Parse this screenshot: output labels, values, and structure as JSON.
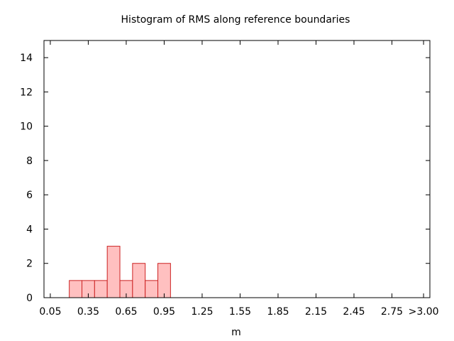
{
  "chart_data": {
    "type": "bar",
    "title": "Histogram of RMS along reference boundaries",
    "xlabel": "m",
    "ylabel": "",
    "bin_width": 0.1,
    "bin_starts": [
      0.2,
      0.3,
      0.4,
      0.5,
      0.6,
      0.7,
      0.8,
      0.9
    ],
    "values": [
      1,
      1,
      1,
      3,
      1,
      2,
      1,
      2
    ],
    "xlim": [
      0.0,
      3.05
    ],
    "ylim": [
      0,
      15
    ],
    "x_ticks": [
      {
        "value": 0.05,
        "label": "0.05"
      },
      {
        "value": 0.35,
        "label": "0.35"
      },
      {
        "value": 0.65,
        "label": "0.65"
      },
      {
        "value": 0.95,
        "label": "0.95"
      },
      {
        "value": 1.25,
        "label": "1.25"
      },
      {
        "value": 1.55,
        "label": "1.55"
      },
      {
        "value": 1.85,
        "label": "1.85"
      },
      {
        "value": 2.15,
        "label": "2.15"
      },
      {
        "value": 2.45,
        "label": "2.45"
      },
      {
        "value": 2.75,
        "label": "2.75"
      },
      {
        "value": 3.0,
        "label": ">3.00"
      }
    ],
    "y_ticks": [
      0,
      2,
      4,
      6,
      8,
      10,
      12,
      14
    ],
    "grid": false,
    "colors": {
      "bar_fill": "#ffc0c0",
      "bar_stroke": "#cc2222",
      "axis": "#000000"
    }
  }
}
